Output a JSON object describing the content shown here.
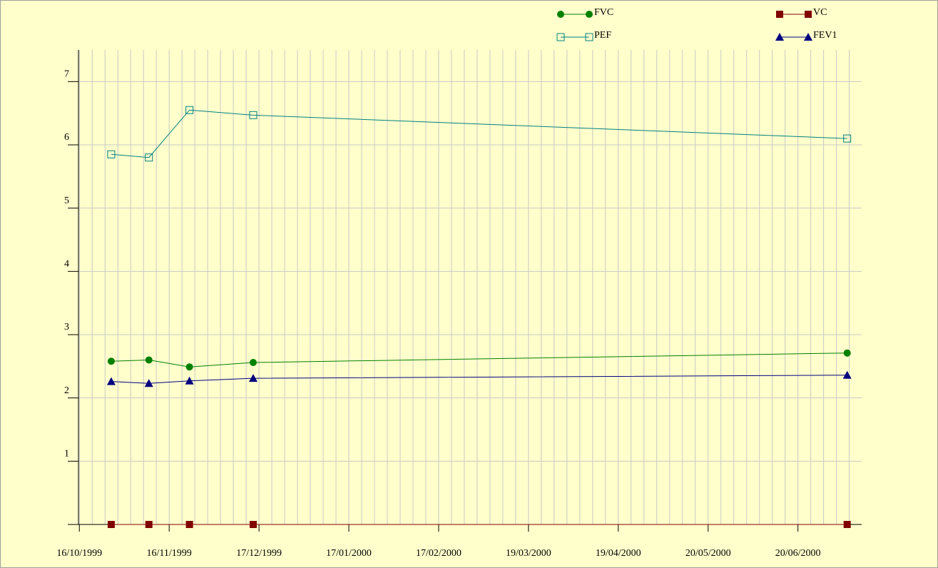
{
  "chart_data": {
    "type": "line",
    "x": [
      "27/10/1999",
      "09/11/1999",
      "23/11/1999",
      "15/12/1999",
      "07/07/2000"
    ],
    "series": [
      {
        "name": "FVC",
        "color": "#008000",
        "marker": "circle",
        "values": [
          2.58,
          2.6,
          2.49,
          2.56,
          2.71
        ]
      },
      {
        "name": "VC",
        "color": "#800000",
        "marker": "square",
        "values": [
          0,
          0,
          0,
          0,
          0
        ]
      },
      {
        "name": "PEF",
        "color": "#008080",
        "marker": "open-square",
        "values": [
          5.85,
          5.8,
          6.55,
          6.47,
          6.1
        ]
      },
      {
        "name": "FEV1",
        "color": "#000080",
        "marker": "triangle",
        "values": [
          2.26,
          2.23,
          2.27,
          2.31,
          2.36
        ]
      }
    ],
    "xlim": [
      "12/10/1999",
      "12/07/2000"
    ],
    "xticks": [
      "16/10/1999",
      "16/11/1999",
      "17/12/1999",
      "17/01/2000",
      "17/02/2000",
      "19/03/2000",
      "19/04/2000",
      "20/05/2000",
      "20/06/2000"
    ],
    "ylim": [
      0,
      7.5
    ],
    "yticks": [
      1,
      2,
      3,
      4,
      5,
      6,
      7
    ],
    "grid": true,
    "legend": "top-right"
  }
}
